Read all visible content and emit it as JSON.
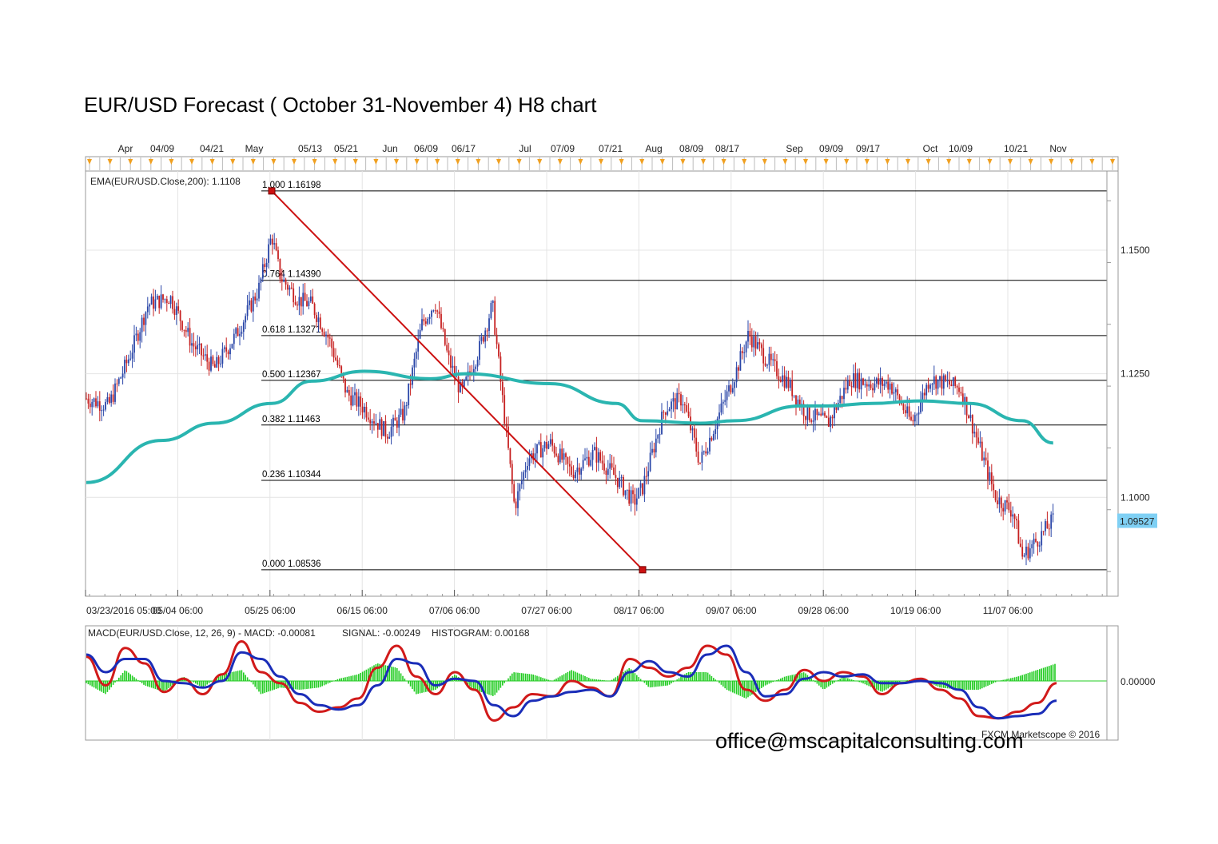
{
  "page": {
    "title": "EUR/USD Forecast ( October 31-November 4) H8 chart",
    "watermark": "office@mscapitalconsulting.com",
    "credit": "FXCM Marketscope © 2016"
  },
  "chart_data": [
    {
      "type": "candlestick",
      "title": "EUR/USD Forecast ( October 31-November 4) H8 chart",
      "x_top_labels": [
        "Apr",
        "04/09",
        "04/21",
        "May",
        "05/13",
        "05/21",
        "Jun",
        "06/09",
        "06/17",
        "Jul",
        "07/09",
        "07/21",
        "Aug",
        "08/09",
        "08/17",
        "Sep",
        "09/09",
        "09/17",
        "Oct",
        "10/09",
        "10/21",
        "Nov"
      ],
      "x_bottom_labels": [
        "03/23/2016 05:00",
        "05/04 06:00",
        "05/25 06:00",
        "06/15 06:00",
        "07/06 06:00",
        "07/27 06:00",
        "08/17 06:00",
        "09/07 06:00",
        "09/28 06:00",
        "10/19 06:00",
        "11/07 06:00"
      ],
      "y_ticks": [
        "1.1500",
        "1.1250",
        "1.1000"
      ],
      "ylim": [
        1.08,
        1.166
      ],
      "current_price": "1.09527",
      "grid": true,
      "ema": {
        "label": "EMA(EUR/USD.Close,200): 1.1108",
        "color": "#2ab5b0",
        "x": [
          "03/23",
          "04/09",
          "04/21",
          "05/04",
          "05/13",
          "05/25",
          "06/09",
          "06/17",
          "07/06",
          "07/21",
          "07/27",
          "08/09",
          "08/17",
          "09/01",
          "09/07",
          "09/17",
          "09/28",
          "10/09",
          "10/21",
          "10/28"
        ],
        "values": [
          1.103,
          1.1115,
          1.115,
          1.119,
          1.1235,
          1.1255,
          1.124,
          1.125,
          1.123,
          1.119,
          1.1155,
          1.115,
          1.1155,
          1.1185,
          1.1185,
          1.119,
          1.1195,
          1.119,
          1.1155,
          1.111
        ]
      },
      "price": {
        "x": [
          "03/23",
          "03/28",
          "04/02",
          "04/06",
          "04/11",
          "04/16",
          "04/21",
          "04/26",
          "05/01",
          "05/04",
          "05/06",
          "05/10",
          "05/13",
          "05/17",
          "05/21",
          "05/25",
          "05/30",
          "06/03",
          "06/07",
          "06/10",
          "06/13",
          "06/16",
          "06/20",
          "06/23",
          "06/25",
          "06/28",
          "07/01",
          "07/06",
          "07/11",
          "07/16",
          "07/21",
          "07/25",
          "07/27",
          "08/01",
          "08/05",
          "08/09",
          "08/13",
          "08/17",
          "08/20",
          "08/24",
          "08/29",
          "09/02",
          "09/07",
          "09/12",
          "09/17",
          "09/21",
          "09/26",
          "09/30",
          "10/04",
          "10/07",
          "10/11",
          "10/15",
          "10/19",
          "10/21",
          "10/25",
          "10/28"
        ],
        "values": [
          1.12,
          1.1185,
          1.129,
          1.139,
          1.1405,
          1.131,
          1.126,
          1.133,
          1.142,
          1.153,
          1.1445,
          1.14,
          1.139,
          1.132,
          1.121,
          1.118,
          1.113,
          1.117,
          1.135,
          1.1395,
          1.128,
          1.121,
          1.13,
          1.139,
          1.122,
          1.098,
          1.108,
          1.111,
          1.105,
          1.109,
          1.104,
          1.099,
          1.102,
          1.118,
          1.12,
          1.107,
          1.116,
          1.125,
          1.133,
          1.128,
          1.123,
          1.117,
          1.115,
          1.124,
          1.123,
          1.123,
          1.115,
          1.124,
          1.123,
          1.122,
          1.111,
          1.1,
          1.097,
          1.088,
          1.092,
          1.0955
        ]
      },
      "trend_line": {
        "from": [
          "05/04",
          1.16198
        ],
        "to": [
          "07/27",
          1.08536
        ],
        "color": "#cc1111"
      },
      "fibonacci": [
        {
          "label": "1.000 1.16198",
          "value": 1.16198
        },
        {
          "label": "0.764 1.14390",
          "value": 1.1439
        },
        {
          "label": "0.618 1.13271",
          "value": 1.13271
        },
        {
          "label": "0.500 1.12367",
          "value": 1.12367
        },
        {
          "label": "0.382 1.11463",
          "value": 1.11463
        },
        {
          "label": "0.236 1.10344",
          "value": 1.10344
        },
        {
          "label": "0.000 1.08536",
          "value": 1.08536
        }
      ]
    },
    {
      "type": "line",
      "title": "MACD",
      "legend": {
        "macd": "MACD(EUR/USD.Close, 12, 26, 9) -  MACD: -0.00081",
        "signal": "SIGNAL: -0.00249",
        "histogram": "HISTOGRAM: 0.00168"
      },
      "y_ticks": [
        "0.00000"
      ],
      "ylim": [
        -1,
        1
      ],
      "series": [
        {
          "key": "macd",
          "color": "#d11a1a",
          "values": [
            0.55,
            -0.1,
            0.75,
            0.4,
            -0.25,
            0.05,
            -0.3,
            0.15,
            0.9,
            0.2,
            -0.05,
            -0.5,
            -0.7,
            -0.6,
            -0.4,
            0.3,
            0.8,
            0.1,
            -0.3,
            0.2,
            -0.2,
            -0.9,
            -0.6,
            -0.3,
            -0.35,
            0.0,
            -0.15,
            -0.35,
            0.5,
            0.3,
            0.1,
            0.3,
            0.8,
            0.6,
            -0.2,
            -0.45,
            -0.2,
            0.25,
            0.0,
            0.2,
            0.1,
            -0.3,
            -0.05,
            0.05,
            -0.2,
            -0.4,
            -0.8,
            -0.85,
            -0.7,
            -0.5,
            -0.05
          ]
        },
        {
          "key": "signal",
          "color": "#1a2db8",
          "values": [
            0.6,
            0.2,
            0.5,
            0.5,
            0.0,
            -0.05,
            -0.15,
            0.0,
            0.65,
            0.5,
            0.1,
            -0.3,
            -0.55,
            -0.65,
            -0.55,
            -0.1,
            0.5,
            0.4,
            -0.1,
            0.05,
            0.0,
            -0.55,
            -0.8,
            -0.45,
            -0.35,
            -0.25,
            -0.2,
            -0.35,
            0.2,
            0.45,
            0.2,
            0.1,
            0.6,
            0.8,
            0.2,
            -0.35,
            -0.3,
            0.05,
            0.2,
            0.1,
            0.15,
            -0.05,
            -0.05,
            0.0,
            -0.05,
            -0.2,
            -0.6,
            -0.85,
            -0.8,
            -0.75,
            -0.45
          ]
        },
        {
          "key": "histogram",
          "color": "#22cc22",
          "values": [
            -0.05,
            -0.3,
            0.25,
            -0.1,
            -0.25,
            0.1,
            -0.15,
            0.15,
            0.25,
            -0.3,
            -0.15,
            -0.2,
            -0.15,
            0.05,
            0.15,
            0.4,
            0.3,
            -0.3,
            -0.2,
            0.15,
            -0.2,
            -0.35,
            0.2,
            0.15,
            0.0,
            0.25,
            0.05,
            0.0,
            0.3,
            -0.15,
            -0.1,
            0.2,
            0.2,
            -0.2,
            -0.4,
            -0.1,
            0.1,
            0.2,
            -0.2,
            0.1,
            -0.05,
            -0.25,
            0.0,
            0.05,
            -0.15,
            -0.2,
            -0.2,
            0.0,
            0.1,
            0.25,
            0.4
          ]
        }
      ]
    }
  ]
}
